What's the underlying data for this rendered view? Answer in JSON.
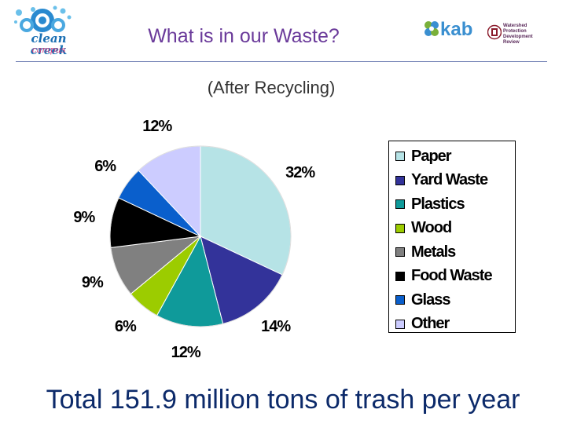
{
  "header": {
    "logo_left": {
      "brand": "clean creek",
      "sub": "campus"
    },
    "title": "What is in our Waste?",
    "logo_kab": {
      "text": "kab"
    },
    "logo_uni": {
      "text": "Watershed Protection Development Review"
    }
  },
  "subtitle": "(After Recycling)",
  "footer": "Total 151.9 million tons of trash per year",
  "chart_data": {
    "type": "pie",
    "title": "",
    "legend_position": "right",
    "slices": [
      {
        "name": "Paper",
        "value": 32,
        "label": "32%",
        "color": "#b6e3e6"
      },
      {
        "name": "Yard Waste",
        "value": 14,
        "label": "14%",
        "color": "#33339a"
      },
      {
        "name": "Plastics",
        "value": 12,
        "label": "12%",
        "color": "#0f9a9a"
      },
      {
        "name": "Wood",
        "value": 6,
        "label": "6%",
        "color": "#9ccc00"
      },
      {
        "name": "Metals",
        "value": 9,
        "label": "9%",
        "color": "#808080"
      },
      {
        "name": "Food Waste",
        "value": 9,
        "label": "9%",
        "color": "#000000"
      },
      {
        "name": "Glass",
        "value": 6,
        "label": "6%",
        "color": "#0a5fcc"
      },
      {
        "name": "Other",
        "value": 12,
        "label": "12%",
        "color": "#ccccff"
      }
    ]
  }
}
